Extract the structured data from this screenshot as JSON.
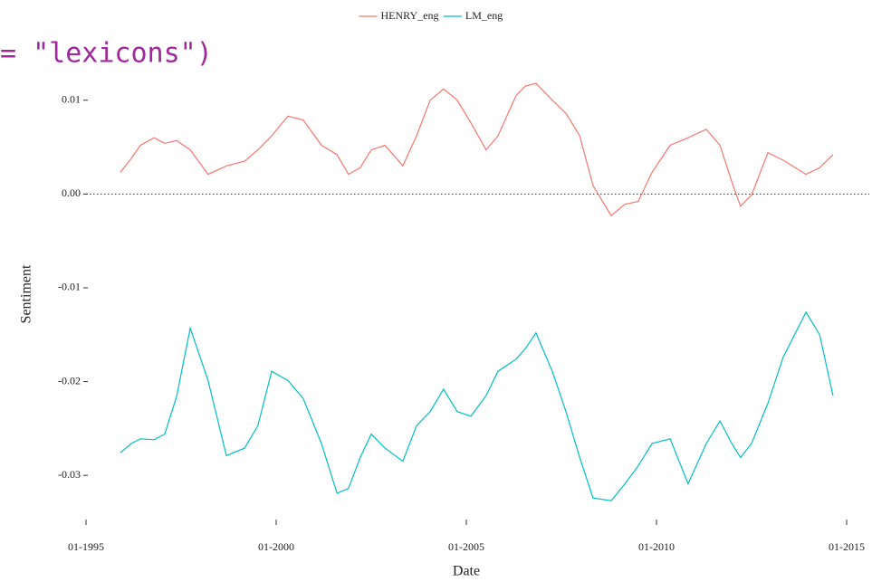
{
  "chart_data": {
    "type": "line",
    "overlay_text": "= \"lexicons\")",
    "x_label": "Date",
    "y_label": "Sentiment",
    "legend": "top",
    "x": [
      1995.9,
      1996.19,
      1996.43,
      1996.79,
      1997.07,
      1997.38,
      1997.74,
      1998.21,
      1998.69,
      1999.17,
      1999.52,
      1999.88,
      2000.31,
      2000.71,
      2001.19,
      2001.6,
      2001.9,
      2002.21,
      2002.5,
      2002.86,
      2003.33,
      2003.69,
      2004.05,
      2004.4,
      2004.76,
      2005.12,
      2005.52,
      2005.83,
      2006.31,
      2006.55,
      2006.83,
      2007.26,
      2007.62,
      2007.98,
      2008.33,
      2008.81,
      2009.17,
      2009.52,
      2009.88,
      2010.36,
      2010.83,
      2011.31,
      2011.67,
      2011.98,
      2012.21,
      2012.5,
      2012.93,
      2013.33,
      2013.93,
      2014.29,
      2014.64
    ],
    "series": [
      {
        "name": "HENRY_eng",
        "color": "#f8766d",
        "values": [
          0.0023,
          0.0038,
          0.0052,
          0.006,
          0.0054,
          0.0057,
          0.0047,
          0.0021,
          0.003,
          0.0035,
          0.0047,
          0.0062,
          0.0083,
          0.0079,
          0.0052,
          0.0042,
          0.0021,
          0.0028,
          0.0047,
          0.0052,
          0.003,
          0.0062,
          0.01,
          0.0112,
          0.01,
          0.0076,
          0.0047,
          0.0062,
          0.0105,
          0.0115,
          0.0118,
          0.01,
          0.0086,
          0.0062,
          0.0009,
          -0.0023,
          -0.0011,
          -0.0008,
          0.0023,
          0.0052,
          0.006,
          0.0069,
          0.0052,
          0.0013,
          -0.0013,
          -0.0001,
          0.0044,
          0.0036,
          0.0021,
          0.0028,
          0.0042
        ]
      },
      {
        "name": "LM_eng",
        "color": "#00bfc4",
        "values": [
          -0.0276,
          -0.0266,
          -0.0261,
          -0.0262,
          -0.0256,
          -0.0216,
          -0.0143,
          -0.0199,
          -0.0279,
          -0.0271,
          -0.0247,
          -0.0189,
          -0.0199,
          -0.0218,
          -0.0266,
          -0.0319,
          -0.0314,
          -0.0281,
          -0.0256,
          -0.0271,
          -0.0285,
          -0.0247,
          -0.0232,
          -0.0208,
          -0.0232,
          -0.0237,
          -0.0215,
          -0.0189,
          -0.0176,
          -0.0165,
          -0.0148,
          -0.0189,
          -0.0232,
          -0.0281,
          -0.0324,
          -0.0327,
          -0.0309,
          -0.029,
          -0.0266,
          -0.0261,
          -0.0309,
          -0.0266,
          -0.0242,
          -0.0266,
          -0.0281,
          -0.0266,
          -0.0223,
          -0.0174,
          -0.0126,
          -0.015,
          -0.0215
        ]
      }
    ],
    "xlim": [
      1995,
      2015
    ],
    "xticks": [
      {
        "value": 1995,
        "label": "01-1995"
      },
      {
        "value": 2000,
        "label": "01-2000"
      },
      {
        "value": 2005,
        "label": "01-2005"
      },
      {
        "value": 2010,
        "label": "01-2010"
      },
      {
        "value": 2015,
        "label": "01-2015"
      }
    ],
    "ylim": [
      -0.035,
      0.012
    ],
    "yticks": [
      0.01,
      {
        "value": 0,
        "label": "0.00"
      },
      -0.01,
      -0.02,
      -0.03
    ],
    "reference_line": 0
  }
}
